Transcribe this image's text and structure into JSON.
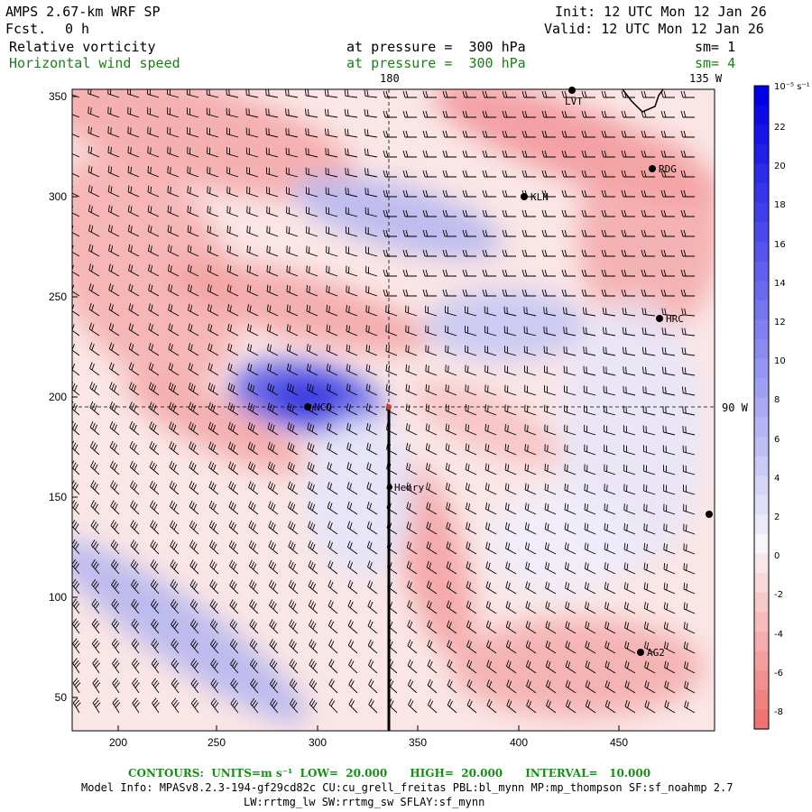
{
  "header": {
    "model": "AMPS 2.67-km WRF SP",
    "fcst_label": "Fcst.",
    "fcst_value": "0 h",
    "init": "Init: 12 UTC Mon 12 Jan 26",
    "valid": "Valid: 12 UTC Mon 12 Jan 26",
    "field1_name": "Relative vorticity",
    "field1_level": "at pressure =  300 hPa",
    "field1_sm": "sm= 1",
    "field2_name": "Horizontal wind speed",
    "field2_level": "at pressure =  300 hPa",
    "field2_sm": "sm= 4"
  },
  "map": {
    "meridian_labels": [
      "180",
      "135 W"
    ],
    "parallel_label": "90 W",
    "x_ticks": [
      "200",
      "250",
      "300",
      "350",
      "400",
      "450"
    ],
    "y_ticks": [
      "350",
      "300",
      "250",
      "200",
      "150",
      "100",
      "50"
    ],
    "stations": [
      {
        "name": "NCO"
      },
      {
        "name": "KLN"
      },
      {
        "name": "RDG"
      },
      {
        "name": "HRC"
      },
      {
        "name": "Henry"
      },
      {
        "name": "AG2"
      },
      {
        "name": "LVT"
      }
    ]
  },
  "colorbar": {
    "units": "10⁻⁵ s⁻¹",
    "labels": [
      "22",
      "20",
      "18",
      "16",
      "14",
      "12",
      "10",
      "8",
      "6",
      "4",
      "2",
      "0",
      "-2",
      "-4",
      "-6",
      "-8"
    ]
  },
  "footer": {
    "contours": "CONTOURS:  UNITS=m s⁻¹  LOW=  20.000      HIGH=  20.000      INTERVAL=   10.000",
    "model_info": "Model Info: MPASv8.2.3-194-gf29cd82c CU:cu_grell_freitas PBL:bl_mynn MP:mp_thompson SF:sf_noahmp 2.7",
    "model_info2": "LW:rrtmg_lw SW:rrtmg_sw SFLAY:sf_mynn"
  }
}
